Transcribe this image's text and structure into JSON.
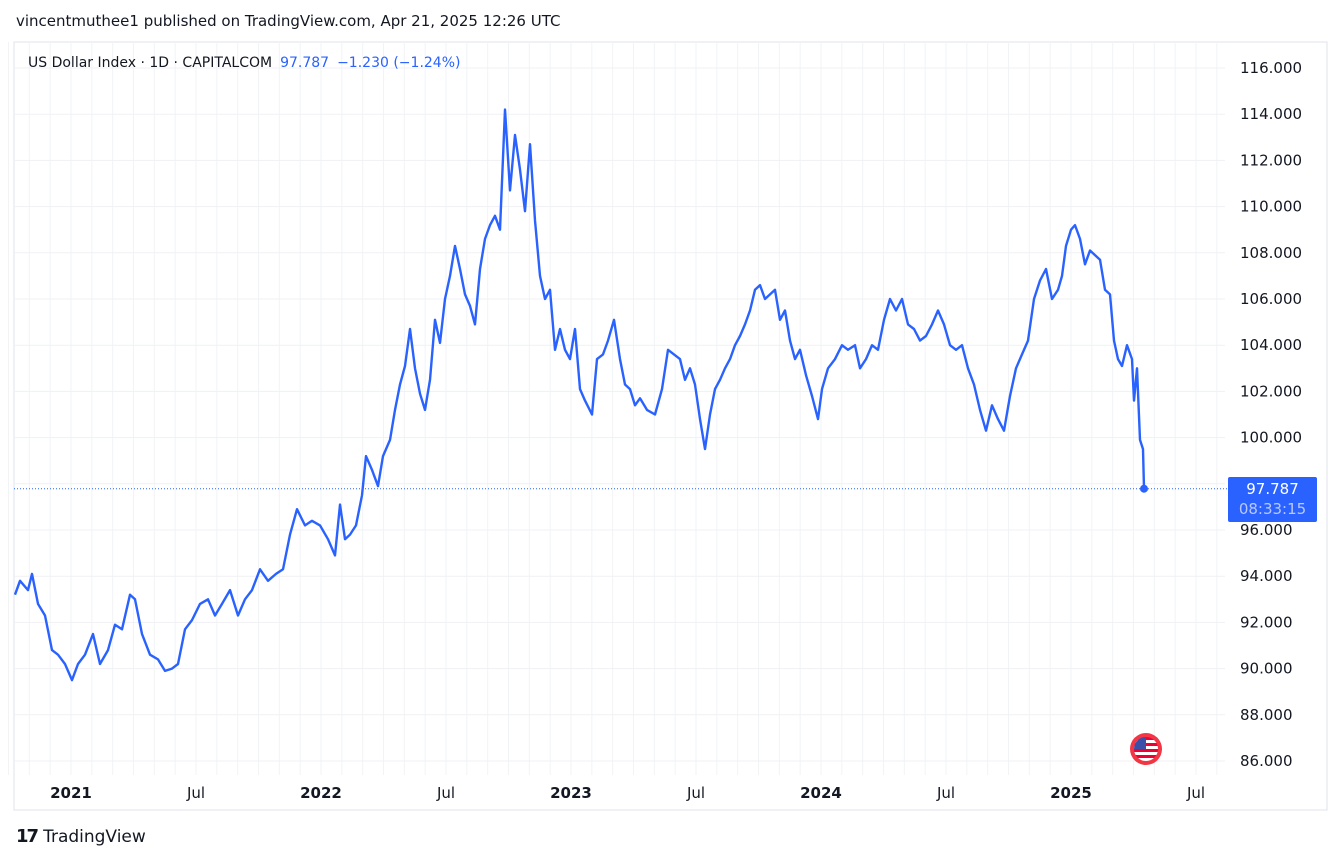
{
  "header": {
    "publisher_line": "vincentmuthee1 published on TradingView.com, Apr 21, 2025 12:26 UTC"
  },
  "legend": {
    "symbol": "US Dollar Index · 1D · CAPITALCOM",
    "last": "97.787",
    "change": "−1.230 (−1.24%)"
  },
  "price_tag": {
    "price": "97.787",
    "countdown": "08:33:15"
  },
  "footer": {
    "logo_mark": "17",
    "brand": "TradingView"
  },
  "colors": {
    "line": "#2962ff",
    "grid": "#f0f3fa",
    "text": "#131722"
  },
  "chart_data": {
    "type": "line",
    "title": "US Dollar Index · 1D · CAPITALCOM",
    "xlabel": "",
    "ylabel": "",
    "xlim": [
      2020.72,
      2025.62
    ],
    "ylim": [
      85.6,
      116.9
    ],
    "grid": true,
    "y_ticks": [
      86,
      88,
      90,
      92,
      94,
      96,
      98,
      100,
      102,
      104,
      106,
      108,
      110,
      112,
      114,
      116
    ],
    "y_tick_labels": [
      "86.000",
      "88.000",
      "90.000",
      "92.000",
      "94.000",
      "96.000",
      "98.000",
      "100.000",
      "102.000",
      "104.000",
      "106.000",
      "108.000",
      "110.000",
      "112.000",
      "114.000",
      "116.000"
    ],
    "x_ticks": [
      {
        "t": 2021.0,
        "label": "2021",
        "bold": true
      },
      {
        "t": 2021.5,
        "label": "Jul",
        "bold": false
      },
      {
        "t": 2022.0,
        "label": "2022",
        "bold": true
      },
      {
        "t": 2022.5,
        "label": "Jul",
        "bold": false
      },
      {
        "t": 2023.0,
        "label": "2023",
        "bold": true
      },
      {
        "t": 2023.5,
        "label": "Jul",
        "bold": false
      },
      {
        "t": 2024.0,
        "label": "2024",
        "bold": true
      },
      {
        "t": 2024.5,
        "label": "Jul",
        "bold": false
      },
      {
        "t": 2025.0,
        "label": "2025",
        "bold": true
      },
      {
        "t": 2025.5,
        "label": "Jul",
        "bold": false
      }
    ],
    "last_value": 97.787,
    "series": [
      {
        "name": "US Dollar Index",
        "points": [
          [
            2020.776,
            93.2
          ],
          [
            2020.796,
            93.8
          ],
          [
            2020.828,
            93.4
          ],
          [
            2020.844,
            94.1
          ],
          [
            2020.868,
            92.8
          ],
          [
            2020.896,
            92.3
          ],
          [
            2020.924,
            90.8
          ],
          [
            2020.948,
            90.6
          ],
          [
            2020.976,
            90.2
          ],
          [
            2021.004,
            89.5
          ],
          [
            2021.028,
            90.2
          ],
          [
            2021.056,
            90.6
          ],
          [
            2021.088,
            91.5
          ],
          [
            2021.116,
            90.2
          ],
          [
            2021.148,
            90.8
          ],
          [
            2021.176,
            91.9
          ],
          [
            2021.204,
            91.7
          ],
          [
            2021.236,
            93.2
          ],
          [
            2021.256,
            93.0
          ],
          [
            2021.284,
            91.5
          ],
          [
            2021.316,
            90.6
          ],
          [
            2021.348,
            90.4
          ],
          [
            2021.376,
            89.9
          ],
          [
            2021.404,
            90.0
          ],
          [
            2021.428,
            90.2
          ],
          [
            2021.456,
            91.7
          ],
          [
            2021.484,
            92.1
          ],
          [
            2021.516,
            92.8
          ],
          [
            2021.548,
            93.0
          ],
          [
            2021.576,
            92.3
          ],
          [
            2021.604,
            92.8
          ],
          [
            2021.636,
            93.4
          ],
          [
            2021.668,
            92.3
          ],
          [
            2021.696,
            93.0
          ],
          [
            2021.724,
            93.4
          ],
          [
            2021.756,
            94.3
          ],
          [
            2021.788,
            93.8
          ],
          [
            2021.82,
            94.1
          ],
          [
            2021.848,
            94.3
          ],
          [
            2021.876,
            95.8
          ],
          [
            2021.904,
            96.9
          ],
          [
            2021.936,
            96.2
          ],
          [
            2021.964,
            96.4
          ],
          [
            2021.996,
            96.2
          ],
          [
            2022.028,
            95.6
          ],
          [
            2022.056,
            94.9
          ],
          [
            2022.076,
            97.1
          ],
          [
            2022.096,
            95.6
          ],
          [
            2022.116,
            95.8
          ],
          [
            2022.14,
            96.2
          ],
          [
            2022.164,
            97.5
          ],
          [
            2022.18,
            99.2
          ],
          [
            2022.204,
            98.6
          ],
          [
            2022.228,
            97.9
          ],
          [
            2022.248,
            99.2
          ],
          [
            2022.276,
            99.9
          ],
          [
            2022.296,
            101.2
          ],
          [
            2022.316,
            102.3
          ],
          [
            2022.336,
            103.1
          ],
          [
            2022.356,
            104.7
          ],
          [
            2022.376,
            103.0
          ],
          [
            2022.396,
            101.9
          ],
          [
            2022.416,
            101.2
          ],
          [
            2022.436,
            102.5
          ],
          [
            2022.456,
            105.1
          ],
          [
            2022.476,
            104.1
          ],
          [
            2022.496,
            106.0
          ],
          [
            2022.516,
            107.0
          ],
          [
            2022.536,
            108.3
          ],
          [
            2022.556,
            107.3
          ],
          [
            2022.576,
            106.2
          ],
          [
            2022.596,
            105.7
          ],
          [
            2022.616,
            104.9
          ],
          [
            2022.636,
            107.3
          ],
          [
            2022.656,
            108.6
          ],
          [
            2022.676,
            109.2
          ],
          [
            2022.696,
            109.6
          ],
          [
            2022.716,
            109.0
          ],
          [
            2022.736,
            114.2
          ],
          [
            2022.756,
            110.7
          ],
          [
            2022.776,
            113.1
          ],
          [
            2022.796,
            111.6
          ],
          [
            2022.816,
            109.8
          ],
          [
            2022.836,
            112.7
          ],
          [
            2022.856,
            109.4
          ],
          [
            2022.876,
            107.0
          ],
          [
            2022.896,
            106.0
          ],
          [
            2022.916,
            106.4
          ],
          [
            2022.936,
            103.8
          ],
          [
            2022.956,
            104.7
          ],
          [
            2022.976,
            103.8
          ],
          [
            2022.996,
            103.4
          ],
          [
            2023.016,
            104.7
          ],
          [
            2023.036,
            102.1
          ],
          [
            2023.056,
            101.6
          ],
          [
            2023.084,
            101.0
          ],
          [
            2023.104,
            103.4
          ],
          [
            2023.128,
            103.6
          ],
          [
            2023.148,
            104.2
          ],
          [
            2023.172,
            105.1
          ],
          [
            2023.196,
            103.4
          ],
          [
            2023.216,
            102.3
          ],
          [
            2023.236,
            102.1
          ],
          [
            2023.256,
            101.4
          ],
          [
            2023.276,
            101.7
          ],
          [
            2023.304,
            101.2
          ],
          [
            2023.336,
            101.0
          ],
          [
            2023.364,
            102.1
          ],
          [
            2023.388,
            103.8
          ],
          [
            2023.412,
            103.6
          ],
          [
            2023.436,
            103.4
          ],
          [
            2023.456,
            102.5
          ],
          [
            2023.476,
            103.0
          ],
          [
            2023.496,
            102.3
          ],
          [
            2023.516,
            100.8
          ],
          [
            2023.536,
            99.5
          ],
          [
            2023.556,
            101.0
          ],
          [
            2023.576,
            102.1
          ],
          [
            2023.596,
            102.5
          ],
          [
            2023.616,
            103.0
          ],
          [
            2023.636,
            103.4
          ],
          [
            2023.656,
            104.0
          ],
          [
            2023.676,
            104.4
          ],
          [
            2023.696,
            104.9
          ],
          [
            2023.716,
            105.5
          ],
          [
            2023.736,
            106.4
          ],
          [
            2023.756,
            106.6
          ],
          [
            2023.776,
            106.0
          ],
          [
            2023.796,
            106.2
          ],
          [
            2023.816,
            106.4
          ],
          [
            2023.836,
            105.1
          ],
          [
            2023.856,
            105.5
          ],
          [
            2023.876,
            104.2
          ],
          [
            2023.896,
            103.4
          ],
          [
            2023.916,
            103.8
          ],
          [
            2023.94,
            102.7
          ],
          [
            2023.964,
            101.8
          ],
          [
            2023.988,
            100.8
          ],
          [
            2024.004,
            102.1
          ],
          [
            2024.028,
            103.0
          ],
          [
            2024.056,
            103.4
          ],
          [
            2024.084,
            104.0
          ],
          [
            2024.108,
            103.8
          ],
          [
            2024.136,
            104.0
          ],
          [
            2024.156,
            103.0
          ],
          [
            2024.18,
            103.4
          ],
          [
            2024.204,
            104.0
          ],
          [
            2024.228,
            103.8
          ],
          [
            2024.252,
            105.1
          ],
          [
            2024.276,
            106.0
          ],
          [
            2024.3,
            105.5
          ],
          [
            2024.324,
            106.0
          ],
          [
            2024.348,
            104.9
          ],
          [
            2024.372,
            104.7
          ],
          [
            2024.396,
            104.2
          ],
          [
            2024.42,
            104.4
          ],
          [
            2024.444,
            104.9
          ],
          [
            2024.468,
            105.5
          ],
          [
            2024.492,
            104.9
          ],
          [
            2024.516,
            104.0
          ],
          [
            2024.54,
            103.8
          ],
          [
            2024.564,
            104.0
          ],
          [
            2024.588,
            103.0
          ],
          [
            2024.612,
            102.3
          ],
          [
            2024.636,
            101.2
          ],
          [
            2024.66,
            100.3
          ],
          [
            2024.684,
            101.4
          ],
          [
            2024.708,
            100.8
          ],
          [
            2024.732,
            100.3
          ],
          [
            2024.756,
            101.8
          ],
          [
            2024.78,
            103.0
          ],
          [
            2024.804,
            103.6
          ],
          [
            2024.828,
            104.2
          ],
          [
            2024.852,
            106.0
          ],
          [
            2024.876,
            106.8
          ],
          [
            2024.9,
            107.3
          ],
          [
            2024.924,
            106.0
          ],
          [
            2024.948,
            106.4
          ],
          [
            2024.964,
            107.0
          ],
          [
            2024.98,
            108.3
          ],
          [
            2025.0,
            109.0
          ],
          [
            2025.016,
            109.2
          ],
          [
            2025.036,
            108.6
          ],
          [
            2025.056,
            107.5
          ],
          [
            2025.076,
            108.1
          ],
          [
            2025.096,
            107.9
          ],
          [
            2025.116,
            107.7
          ],
          [
            2025.136,
            106.4
          ],
          [
            2025.156,
            106.2
          ],
          [
            2025.172,
            104.2
          ],
          [
            2025.188,
            103.4
          ],
          [
            2025.204,
            103.1
          ],
          [
            2025.224,
            104.0
          ],
          [
            2025.244,
            103.4
          ],
          [
            2025.252,
            101.6
          ],
          [
            2025.264,
            103.0
          ],
          [
            2025.276,
            99.9
          ],
          [
            2025.288,
            99.5
          ],
          [
            2025.292,
            97.787
          ]
        ]
      }
    ]
  }
}
